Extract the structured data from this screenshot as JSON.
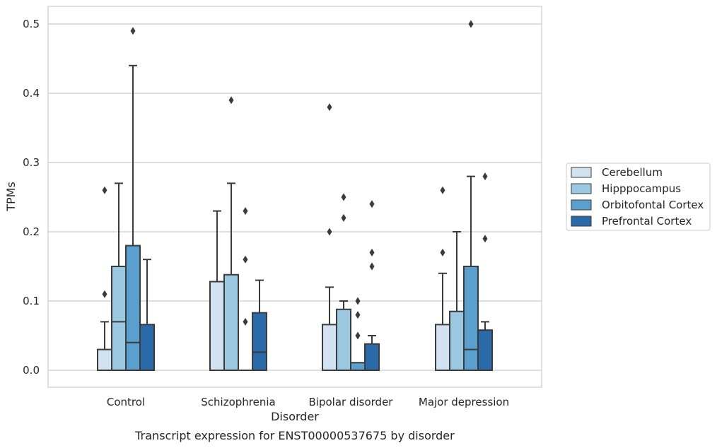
{
  "chart_data": {
    "type": "box",
    "caption": "Transcript expression for ENST00000537675 by disorder",
    "xlabel": "Disorder",
    "ylabel": "TPMs",
    "ylim": [
      -0.025,
      0.525
    ],
    "yticks": [
      "0.0",
      "0.1",
      "0.2",
      "0.3",
      "0.4",
      "0.5"
    ],
    "grid": true,
    "legend_position": "right",
    "categories": [
      "Control",
      "Schizophrenia",
      "Bipolar disorder",
      "Major depression"
    ],
    "series": [
      {
        "name": "Cerebellum",
        "color": "#d2e2f1",
        "boxes": [
          {
            "q1": 0.0,
            "median": 0.0,
            "q3": 0.03,
            "whisker_low": 0.0,
            "whisker_high": 0.07,
            "outliers": [
              0.11,
              0.26
            ]
          },
          {
            "q1": 0.0,
            "median": 0.0,
            "q3": 0.128,
            "whisker_low": 0.0,
            "whisker_high": 0.23,
            "outliers": []
          },
          {
            "q1": 0.0,
            "median": 0.0,
            "q3": 0.066,
            "whisker_low": 0.0,
            "whisker_high": 0.12,
            "outliers": [
              0.2,
              0.38
            ]
          },
          {
            "q1": 0.0,
            "median": 0.0,
            "q3": 0.066,
            "whisker_low": 0.0,
            "whisker_high": 0.14,
            "outliers": [
              0.17,
              0.26
            ]
          }
        ]
      },
      {
        "name": "Hipppocampus",
        "color": "#9ac8e0",
        "boxes": [
          {
            "q1": 0.0,
            "median": 0.07,
            "q3": 0.15,
            "whisker_low": 0.0,
            "whisker_high": 0.27,
            "outliers": []
          },
          {
            "q1": 0.0,
            "median": 0.0,
            "q3": 0.138,
            "whisker_low": 0.0,
            "whisker_high": 0.27,
            "outliers": [
              0.39
            ]
          },
          {
            "q1": 0.0,
            "median": 0.0,
            "q3": 0.088,
            "whisker_low": 0.0,
            "whisker_high": 0.1,
            "outliers": [
              0.22,
              0.25
            ]
          },
          {
            "q1": 0.0,
            "median": 0.0,
            "q3": 0.085,
            "whisker_low": 0.0,
            "whisker_high": 0.2,
            "outliers": []
          }
        ]
      },
      {
        "name": "Orbitofontal Cortex",
        "color": "#5a9fcd",
        "boxes": [
          {
            "q1": 0.0,
            "median": 0.04,
            "q3": 0.18,
            "whisker_low": 0.0,
            "whisker_high": 0.44,
            "outliers": [
              0.49
            ]
          },
          {
            "q1": 0.0,
            "median": 0.0,
            "q3": 0.0,
            "whisker_low": 0.0,
            "whisker_high": 0.0,
            "outliers": [
              0.07,
              0.16,
              0.23
            ]
          },
          {
            "q1": 0.0,
            "median": 0.0,
            "q3": 0.011,
            "whisker_low": 0.0,
            "whisker_high": 0.011,
            "outliers": [
              0.05,
              0.08,
              0.1
            ]
          },
          {
            "q1": 0.0,
            "median": 0.03,
            "q3": 0.15,
            "whisker_low": 0.0,
            "whisker_high": 0.28,
            "outliers": [
              0.5
            ]
          }
        ]
      },
      {
        "name": "Prefrontal Cortex",
        "color": "#2a6aa9",
        "boxes": [
          {
            "q1": 0.0,
            "median": 0.0,
            "q3": 0.066,
            "whisker_low": 0.0,
            "whisker_high": 0.16,
            "outliers": []
          },
          {
            "q1": 0.0,
            "median": 0.026,
            "q3": 0.083,
            "whisker_low": 0.0,
            "whisker_high": 0.13,
            "outliers": []
          },
          {
            "q1": 0.0,
            "median": 0.0,
            "q3": 0.038,
            "whisker_low": 0.0,
            "whisker_high": 0.05,
            "outliers": [
              0.15,
              0.17,
              0.24
            ]
          },
          {
            "q1": 0.0,
            "median": 0.0,
            "q3": 0.058,
            "whisker_low": 0.0,
            "whisker_high": 0.07,
            "outliers": [
              0.19,
              0.28
            ]
          }
        ]
      }
    ]
  }
}
